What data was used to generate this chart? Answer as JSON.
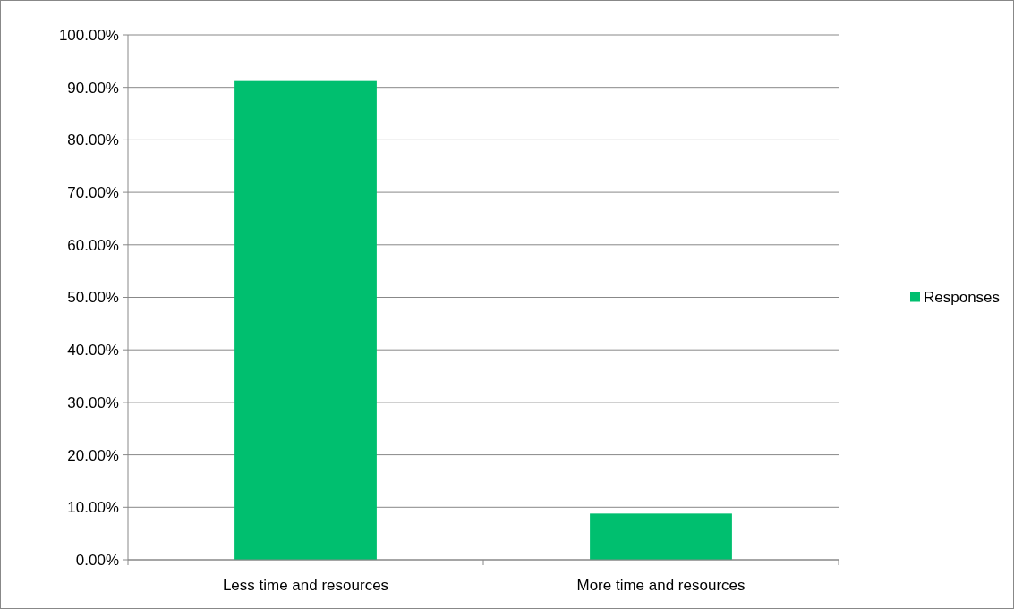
{
  "chart_data": {
    "type": "bar",
    "categories": [
      "Less time and resources",
      "More time and resources"
    ],
    "series": [
      {
        "name": "Responses",
        "color": "#00bf6f",
        "values": [
          91.2,
          8.8
        ]
      }
    ],
    "ylim": [
      0,
      100
    ],
    "yticks": [
      {
        "value": 0,
        "label": "0.00%"
      },
      {
        "value": 10,
        "label": "10.00%"
      },
      {
        "value": 20,
        "label": "20.00%"
      },
      {
        "value": 30,
        "label": "30.00%"
      },
      {
        "value": 40,
        "label": "40.00%"
      },
      {
        "value": 50,
        "label": "50.00%"
      },
      {
        "value": 60,
        "label": "60.00%"
      },
      {
        "value": 70,
        "label": "70.00%"
      },
      {
        "value": 80,
        "label": "80.00%"
      },
      {
        "value": 90,
        "label": "90.00%"
      },
      {
        "value": 100,
        "label": "100.00%"
      }
    ],
    "grid": "y",
    "legend": "right"
  }
}
